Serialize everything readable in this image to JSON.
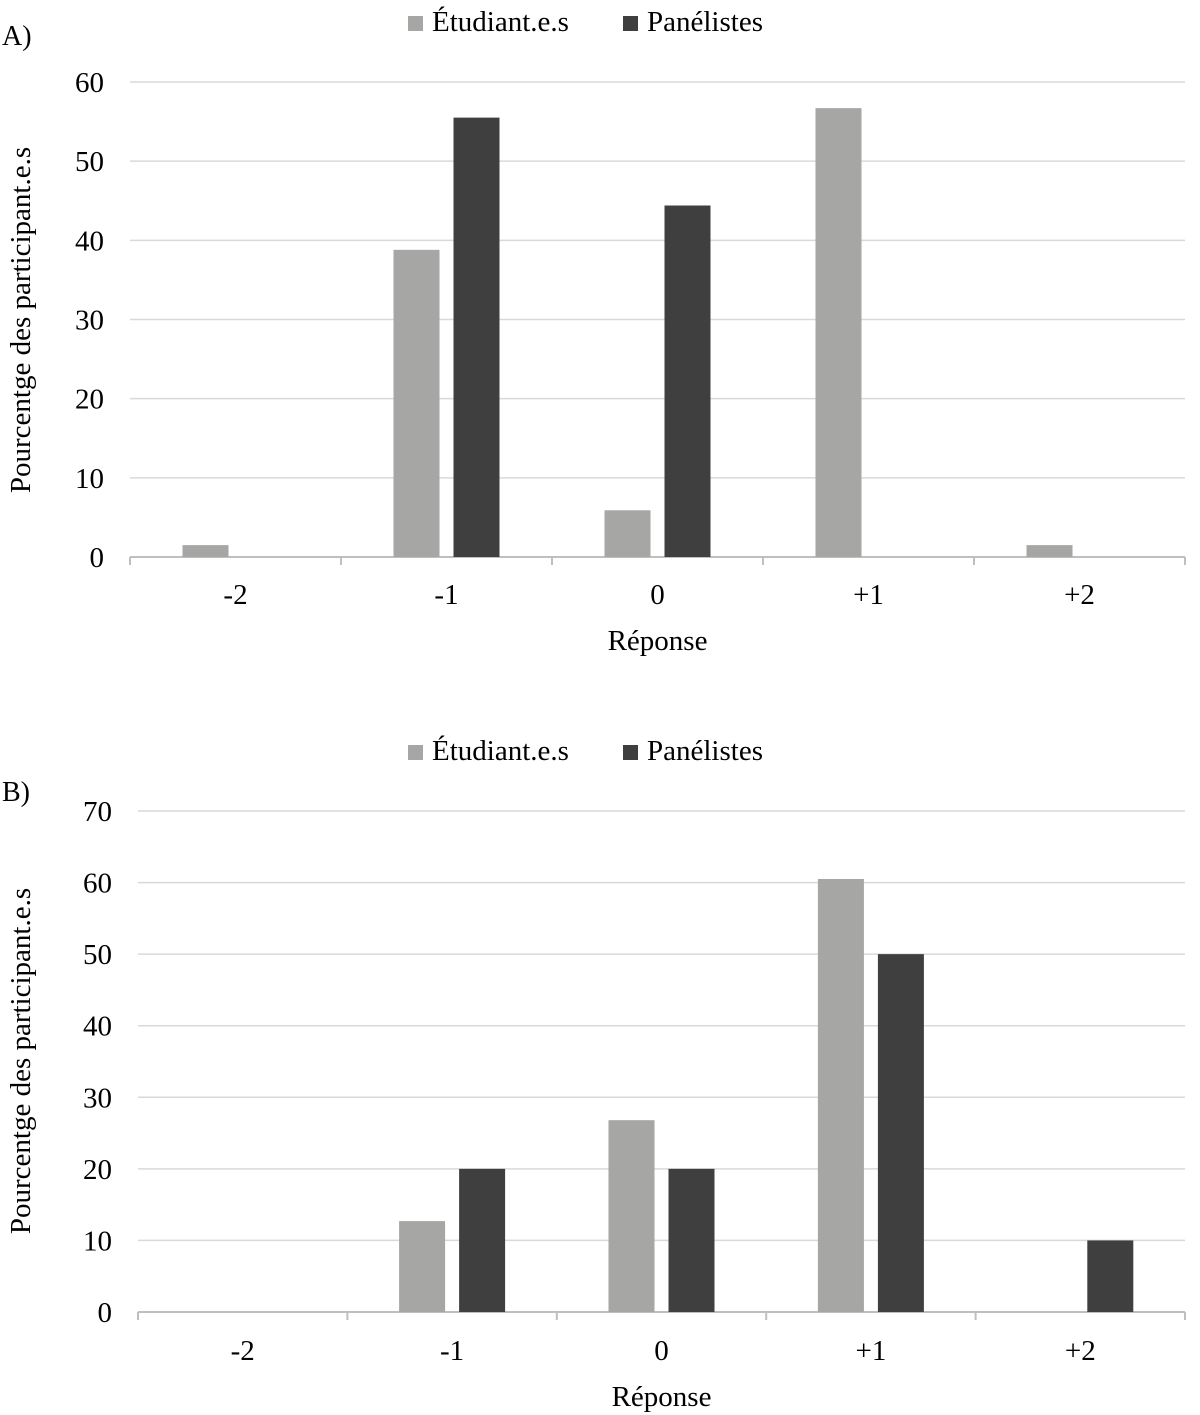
{
  "chart_data": [
    {
      "type": "bar",
      "panel_label": "A)",
      "categories": [
        "-2",
        "-1",
        "0",
        "+1",
        "+2"
      ],
      "series": [
        {
          "name": "Étudiant.e.s",
          "values": [
            1.5,
            38.8,
            5.9,
            56.7,
            1.5
          ]
        },
        {
          "name": "Panélistes",
          "values": [
            0,
            55.5,
            44.4,
            0,
            0
          ]
        }
      ],
      "xlabel": "Réponse",
      "ylabel": "Pourcentge des participant.e.s",
      "ylim": [
        0,
        60
      ],
      "yticks": [
        "0",
        "10",
        "20",
        "30",
        "40",
        "50",
        "60"
      ],
      "grid": true,
      "legend_position": "top-center"
    },
    {
      "type": "bar",
      "panel_label": "B)",
      "categories": [
        "-2",
        "-1",
        "0",
        "+1",
        "+2"
      ],
      "series": [
        {
          "name": "Étudiant.e.s",
          "values": [
            0,
            12.7,
            26.8,
            60.5,
            0
          ]
        },
        {
          "name": "Panélistes",
          "values": [
            0,
            20,
            20,
            50,
            10
          ]
        }
      ],
      "xlabel": "Réponse",
      "ylabel": "Pourcentge des participant.e.s",
      "ylim": [
        0,
        70
      ],
      "yticks": [
        "0",
        "10",
        "20",
        "30",
        "40",
        "50",
        "60",
        "70"
      ],
      "grid": true,
      "legend_position": "top-center"
    }
  ],
  "colors": {
    "students": "#a6a6a5",
    "panelists": "#3f3f3f",
    "gridline": "#d9d9d9",
    "axis": "#bfbfbf"
  }
}
